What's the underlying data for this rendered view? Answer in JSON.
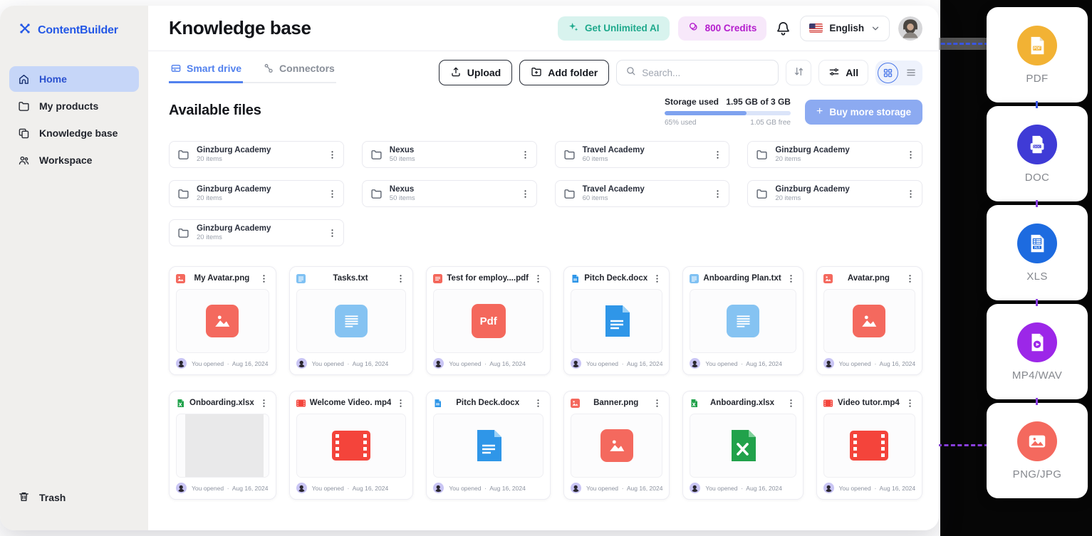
{
  "app": {
    "brand": "ContentBuilder",
    "brand_color": "#2458E6"
  },
  "sidebar": {
    "items": [
      {
        "id": "home",
        "label": "Home",
        "icon": "home-icon",
        "active": true
      },
      {
        "id": "my-products",
        "label": "My products",
        "icon": "folder-icon",
        "active": false
      },
      {
        "id": "knowledge-base",
        "label": "Knowledge base",
        "icon": "copy-icon",
        "active": false
      },
      {
        "id": "workspace",
        "label": "Workspace",
        "icon": "people-icon",
        "active": false
      }
    ],
    "trash_label": "Trash"
  },
  "header": {
    "title": "Knowledge base",
    "ai_button": {
      "label": "Get Unlimited AI",
      "text_color": "#1EA98C",
      "bg": "#D8F3EE",
      "icon": "sparkle-icon"
    },
    "credits_badge": {
      "label": "800 Credits",
      "text_color": "#B41CCD",
      "bg": "#F7E8FA",
      "icon": "coins-icon"
    },
    "language": {
      "label": "English",
      "flag": "us-flag-icon"
    }
  },
  "toolbar": {
    "tabs": [
      {
        "label": "Smart drive",
        "icon": "drive-icon",
        "active": true
      },
      {
        "label": "Connectors",
        "icon": "connectors-icon",
        "active": false
      }
    ],
    "upload_label": "Upload",
    "add_folder_label": "Add folder",
    "search_placeholder": "Search...",
    "filter_all_label": "All"
  },
  "storage": {
    "label": "Storage used",
    "usage": "1.95 GB of 3 GB",
    "percent": 65,
    "used_text": "65% used",
    "free_text": "1.05 GB free",
    "buy_plus": "+",
    "buy_label": "Buy more storage",
    "bar_fill": "#7EA2EF"
  },
  "content": {
    "heading": "Available files",
    "folders": [
      {
        "name": "Ginzburg Academy",
        "items": "20 items"
      },
      {
        "name": "Nexus",
        "items": "50 items"
      },
      {
        "name": "Travel Academy",
        "items": "60 items"
      },
      {
        "name": "Ginzburg Academy",
        "items": "20 items"
      },
      {
        "name": "Ginzburg Academy",
        "items": "20 items"
      },
      {
        "name": "Nexus",
        "items": "50 items"
      },
      {
        "name": "Travel Academy",
        "items": "60 items"
      },
      {
        "name": "Ginzburg Academy",
        "items": "20 items"
      },
      {
        "name": "Ginzburg Academy",
        "items": "20 items"
      }
    ],
    "files": [
      {
        "name": "My Avatar.png",
        "type": "png"
      },
      {
        "name": "Tasks.txt",
        "type": "txt"
      },
      {
        "name": "Test for employ....pdf",
        "type": "pdf"
      },
      {
        "name": "Pitch Deck.docx",
        "type": "docx"
      },
      {
        "name": "Anboarding Plan.txt",
        "type": "txt"
      },
      {
        "name": "Avatar.png",
        "type": "png"
      },
      {
        "name": "Onboarding.xlsx",
        "type": "xlsx",
        "preview": "thumbnail"
      },
      {
        "name": "Welcome Video. mp4",
        "type": "mp4"
      },
      {
        "name": "Pitch Deck.docx",
        "type": "docx"
      },
      {
        "name": "Banner.png",
        "type": "png"
      },
      {
        "name": "Anboarding.xlsx",
        "type": "xlsx"
      },
      {
        "name": "Video tutor.mp4",
        "type": "mp4"
      }
    ],
    "file_footer": {
      "opened": "You opened",
      "separator": "·",
      "date": "Aug 16, 2024"
    }
  },
  "filetype_legend": [
    {
      "label": "PDF",
      "color": "#F2B234",
      "icon": "pdf-file-icon"
    },
    {
      "label": "DOC",
      "color": "#3F3BD6",
      "icon": "doc-file-icon"
    },
    {
      "label": "XLS",
      "color": "#1D6BE0",
      "icon": "xls-file-icon"
    },
    {
      "label": "MP4/WAV",
      "color": "#9C27E8",
      "icon": "media-file-icon"
    },
    {
      "label": "PNG/JPG",
      "color": "#F4695E",
      "icon": "image-file-icon"
    }
  ]
}
